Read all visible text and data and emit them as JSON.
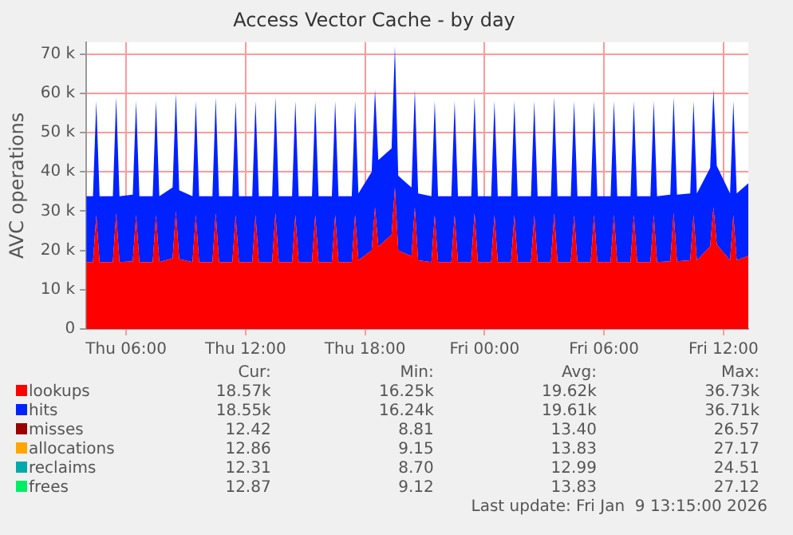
{
  "chart_data": {
    "type": "area",
    "title": "Access Vector Cache - by day",
    "ylabel": "AVC operations",
    "stacked": true,
    "grid": true,
    "legend": "bottom",
    "marker": "none",
    "x": [
      "2026-01-08T04:00",
      "2026-01-08T04:20",
      "2026-01-08T04:30",
      "2026-01-08T04:40",
      "2026-01-08T05:20",
      "2026-01-08T05:30",
      "2026-01-08T05:40",
      "2026-01-08T06:20",
      "2026-01-08T06:30",
      "2026-01-08T06:40",
      "2026-01-08T07:20",
      "2026-01-08T07:30",
      "2026-01-08T07:40",
      "2026-01-08T08:20",
      "2026-01-08T08:30",
      "2026-01-08T08:40",
      "2026-01-08T09:20",
      "2026-01-08T09:30",
      "2026-01-08T09:40",
      "2026-01-08T10:20",
      "2026-01-08T10:30",
      "2026-01-08T10:40",
      "2026-01-08T11:20",
      "2026-01-08T11:30",
      "2026-01-08T11:40",
      "2026-01-08T12:20",
      "2026-01-08T12:30",
      "2026-01-08T12:40",
      "2026-01-08T13:20",
      "2026-01-08T13:30",
      "2026-01-08T13:40",
      "2026-01-08T14:20",
      "2026-01-08T14:30",
      "2026-01-08T14:40",
      "2026-01-08T15:20",
      "2026-01-08T15:30",
      "2026-01-08T15:40",
      "2026-01-08T16:20",
      "2026-01-08T16:30",
      "2026-01-08T16:40",
      "2026-01-08T17:20",
      "2026-01-08T17:30",
      "2026-01-08T17:40",
      "2026-01-08T18:20",
      "2026-01-08T18:30",
      "2026-01-08T18:40",
      "2026-01-08T19:20",
      "2026-01-08T19:30",
      "2026-01-08T19:40",
      "2026-01-08T20:20",
      "2026-01-08T20:30",
      "2026-01-08T20:40",
      "2026-01-08T21:20",
      "2026-01-08T21:30",
      "2026-01-08T21:40",
      "2026-01-08T22:20",
      "2026-01-08T22:30",
      "2026-01-08T22:40",
      "2026-01-08T23:20",
      "2026-01-08T23:30",
      "2026-01-08T23:40",
      "2026-01-09T00:20",
      "2026-01-09T00:30",
      "2026-01-09T00:40",
      "2026-01-09T01:20",
      "2026-01-09T01:30",
      "2026-01-09T01:40",
      "2026-01-09T02:20",
      "2026-01-09T02:30",
      "2026-01-09T02:40",
      "2026-01-09T03:20",
      "2026-01-09T03:30",
      "2026-01-09T03:40",
      "2026-01-09T04:20",
      "2026-01-09T04:30",
      "2026-01-09T04:40",
      "2026-01-09T05:20",
      "2026-01-09T05:30",
      "2026-01-09T05:40",
      "2026-01-09T06:20",
      "2026-01-09T06:30",
      "2026-01-09T06:40",
      "2026-01-09T07:20",
      "2026-01-09T07:30",
      "2026-01-09T07:40",
      "2026-01-09T08:20",
      "2026-01-09T08:30",
      "2026-01-09T08:40",
      "2026-01-09T09:20",
      "2026-01-09T09:30",
      "2026-01-09T09:40",
      "2026-01-09T10:20",
      "2026-01-09T10:30",
      "2026-01-09T10:40",
      "2026-01-09T11:20",
      "2026-01-09T11:30",
      "2026-01-09T11:40",
      "2026-01-09T12:20",
      "2026-01-09T12:30",
      "2026-01-09T12:40",
      "2026-01-09T13:15"
    ],
    "series": [
      {
        "name": "lookups",
        "color": "#ff0000",
        "values": [
          17000,
          17000,
          29000,
          17000,
          17000,
          29500,
          17000,
          17200,
          29000,
          17000,
          17000,
          29000,
          17000,
          18000,
          30000,
          17800,
          17000,
          29000,
          17000,
          17000,
          29500,
          17000,
          17000,
          29000,
          17000,
          17000,
          29000,
          17000,
          17000,
          29500,
          17000,
          17000,
          29000,
          17000,
          17000,
          29000,
          17000,
          17000,
          29000,
          17000,
          17000,
          29000,
          17500,
          20000,
          31000,
          21000,
          24000,
          36000,
          20000,
          18500,
          31000,
          17500,
          17000,
          29000,
          17000,
          17000,
          29000,
          17000,
          17000,
          29500,
          17000,
          17000,
          29000,
          17000,
          17000,
          29000,
          17000,
          17000,
          29000,
          17000,
          17000,
          29500,
          17000,
          17000,
          29000,
          17000,
          17000,
          29000,
          17000,
          17000,
          29000,
          17000,
          17000,
          29000,
          17000,
          17000,
          29000,
          17000,
          17200,
          29500,
          17200,
          17500,
          29000,
          17500,
          21000,
          31000,
          21500,
          17500,
          29000,
          17500,
          18600
        ]
      },
      {
        "name": "hits",
        "color": "#0022ff",
        "values": [
          16800,
          16800,
          29000,
          16800,
          16800,
          29500,
          16800,
          17000,
          29000,
          16800,
          16800,
          29000,
          16800,
          18000,
          30000,
          17500,
          16800,
          29000,
          16800,
          16800,
          29500,
          16800,
          16800,
          29000,
          16800,
          16800,
          29000,
          16800,
          16800,
          29500,
          16800,
          16800,
          29000,
          16800,
          16800,
          29000,
          16800,
          16800,
          29000,
          16800,
          16800,
          29000,
          17000,
          20000,
          30000,
          22000,
          22000,
          36000,
          19000,
          17500,
          30000,
          17000,
          16800,
          29000,
          16800,
          16800,
          29000,
          16800,
          16800,
          29500,
          16800,
          16800,
          29000,
          16800,
          16800,
          29000,
          16800,
          16800,
          29000,
          16800,
          16800,
          29500,
          16800,
          16800,
          29000,
          16800,
          16800,
          29000,
          16800,
          16800,
          29000,
          16800,
          16800,
          29000,
          16800,
          16800,
          29000,
          16800,
          17000,
          29500,
          17000,
          17000,
          29000,
          17000,
          20000,
          30000,
          20000,
          17000,
          29000,
          17000,
          18500
        ]
      },
      {
        "name": "misses",
        "color": "#990000",
        "values": [
          null,
          null,
          null,
          null,
          null,
          null,
          null,
          null,
          null,
          null,
          null,
          null,
          null,
          null,
          null,
          null,
          null,
          null,
          null,
          null,
          null,
          null,
          null,
          null,
          null,
          null,
          null,
          null,
          null,
          null,
          null,
          null,
          null,
          null,
          null,
          null,
          null,
          null,
          null,
          null,
          null,
          null,
          null,
          null,
          null,
          null,
          null,
          null,
          null,
          null,
          null,
          null,
          null,
          null,
          null,
          null,
          null,
          null,
          null,
          null,
          null,
          null,
          null,
          null,
          null,
          null,
          null,
          null,
          null,
          null,
          null,
          null,
          null,
          null,
          null,
          null,
          null,
          null,
          null,
          null,
          null,
          null,
          null,
          null,
          null,
          null,
          null,
          null,
          null,
          null,
          null,
          null,
          null,
          null,
          null,
          null,
          null,
          null,
          null,
          null,
          null
        ]
      },
      {
        "name": "allocations",
        "color": "#ffa500",
        "values": [
          null,
          null,
          null,
          null,
          null,
          null,
          null,
          null,
          null,
          null,
          null,
          null,
          null,
          null,
          null,
          null,
          null,
          null,
          null,
          null,
          null,
          null,
          null,
          null,
          null,
          null,
          null,
          null,
          null,
          null,
          null,
          null,
          null,
          null,
          null,
          null,
          null,
          null,
          null,
          null,
          null,
          null,
          null,
          null,
          null,
          null,
          null,
          null,
          null,
          null,
          null,
          null,
          null,
          null,
          null,
          null,
          null,
          null,
          null,
          null,
          null,
          null,
          null,
          null,
          null,
          null,
          null,
          null,
          null,
          null,
          null,
          null,
          null,
          null,
          null,
          null,
          null,
          null,
          null,
          null,
          null,
          null,
          null,
          null,
          null,
          null,
          null,
          null,
          null,
          null,
          null,
          null,
          null,
          null,
          null,
          null,
          null,
          null,
          null,
          null,
          null
        ]
      },
      {
        "name": "reclaims",
        "color": "#00aaaa",
        "values": [
          null,
          null,
          null,
          null,
          null,
          null,
          null,
          null,
          null,
          null,
          null,
          null,
          null,
          null,
          null,
          null,
          null,
          null,
          null,
          null,
          null,
          null,
          null,
          null,
          null,
          null,
          null,
          null,
          null,
          null,
          null,
          null,
          null,
          null,
          null,
          null,
          null,
          null,
          null,
          null,
          null,
          null,
          null,
          null,
          null,
          null,
          null,
          null,
          null,
          null,
          null,
          null,
          null,
          null,
          null,
          null,
          null,
          null,
          null,
          null,
          null,
          null,
          null,
          null,
          null,
          null,
          null,
          null,
          null,
          null,
          null,
          null,
          null,
          null,
          null,
          null,
          null,
          null,
          null,
          null,
          null,
          null,
          null,
          null,
          null,
          null,
          null,
          null,
          null,
          null,
          null,
          null,
          null,
          null,
          null,
          null,
          null,
          null,
          null,
          null,
          null
        ]
      },
      {
        "name": "frees",
        "color": "#00ee66",
        "values": [
          null,
          null,
          null,
          null,
          null,
          null,
          null,
          null,
          null,
          null,
          null,
          null,
          null,
          null,
          null,
          null,
          null,
          null,
          null,
          null,
          null,
          null,
          null,
          null,
          null,
          null,
          null,
          null,
          null,
          null,
          null,
          null,
          null,
          null,
          null,
          null,
          null,
          null,
          null,
          null,
          null,
          null,
          null,
          null,
          null,
          null,
          null,
          null,
          null,
          null,
          null,
          null,
          null,
          null,
          null,
          null,
          null,
          null,
          null,
          null,
          null,
          null,
          null,
          null,
          null,
          null,
          null,
          null,
          null,
          null,
          null,
          null,
          null,
          null,
          null,
          null,
          null,
          null,
          null,
          null,
          null,
          null,
          null,
          null,
          null,
          null,
          null,
          null,
          null,
          null,
          null,
          null,
          null,
          null,
          null,
          null,
          null,
          null,
          null,
          null,
          null
        ]
      }
    ],
    "xlim": [
      "2026-01-08T04:00",
      "2026-01-09T13:15"
    ],
    "xticks": [
      {
        "value": "2026-01-08T06:00",
        "label": "Thu 06:00"
      },
      {
        "value": "2026-01-08T12:00",
        "label": "Thu 12:00"
      },
      {
        "value": "2026-01-08T18:00",
        "label": "Thu 18:00"
      },
      {
        "value": "2026-01-09T00:00",
        "label": "Fri 00:00"
      },
      {
        "value": "2026-01-09T06:00",
        "label": "Fri 06:00"
      },
      {
        "value": "2026-01-09T12:00",
        "label": "Fri 12:00"
      }
    ],
    "ylim": [
      0,
      73000
    ],
    "yticks": [
      {
        "value": 0,
        "label": "0"
      },
      {
        "value": 10000,
        "label": "10 k"
      },
      {
        "value": 20000,
        "label": "20 k"
      },
      {
        "value": 30000,
        "label": "30 k"
      },
      {
        "value": 40000,
        "label": "40 k"
      },
      {
        "value": 50000,
        "label": "50 k"
      },
      {
        "value": 60000,
        "label": "60 k"
      },
      {
        "value": 70000,
        "label": "70 k"
      }
    ],
    "annotations": [
      "Cur:",
      "Min:",
      "Avg:",
      "Max:",
      "18.57k",
      "16.25k",
      "19.62k",
      "36.73k",
      "18.55k",
      "16.24k",
      "19.61k",
      "36.71k",
      "12.42",
      "8.81",
      "13.40",
      "26.57",
      "12.86",
      "9.15",
      "13.83",
      "27.17",
      "12.31",
      "8.70",
      "12.99",
      "24.51",
      "12.87",
      "9.12",
      "13.83",
      "27.12",
      "Last update: Fri Jan  9 13:15:00 2026"
    ]
  }
}
